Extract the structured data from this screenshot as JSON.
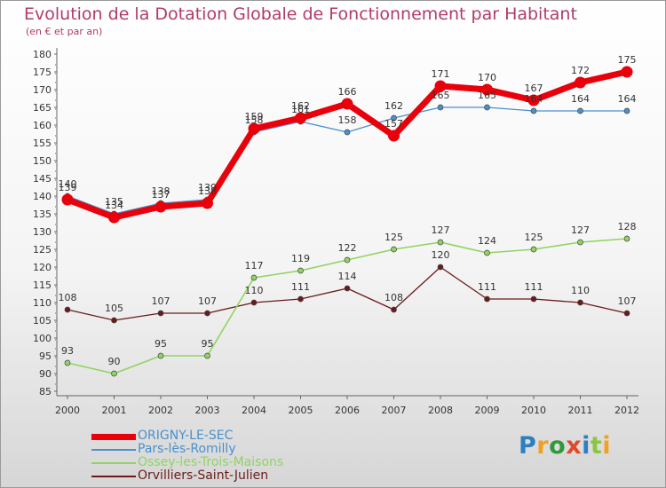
{
  "title": "Evolution de la Dotation Globale de Fonctionnement par Habitant",
  "subtitle": "(en € et par an)",
  "brand": {
    "text": "Proxiti",
    "letters": [
      {
        "ch": "P",
        "color": "#2e7fc0"
      },
      {
        "ch": "r",
        "color": "#f2a020"
      },
      {
        "ch": "o",
        "color": "#2e9a3a"
      },
      {
        "ch": "x",
        "color": "#e04a2a"
      },
      {
        "ch": "i",
        "color": "#2e7fc0"
      },
      {
        "ch": "t",
        "color": "#8cc63f"
      },
      {
        "ch": "i",
        "color": "#f2a020"
      }
    ]
  },
  "chart_data": {
    "type": "line",
    "title": "Evolution de la Dotation Globale de Fonctionnement par Habitant",
    "subtitle": "(en € et par an)",
    "xlabel": "",
    "ylabel": "",
    "categories": [
      "2000",
      "2001",
      "2002",
      "2003",
      "2004",
      "2005",
      "2006",
      "2007",
      "2008",
      "2009",
      "2010",
      "2011",
      "2012"
    ],
    "ylim": [
      85,
      180
    ],
    "ytick_step": 5,
    "grid": false,
    "legend_position": "bottom-left",
    "series": [
      {
        "name": "ORIGNY-LE-SEC",
        "color": "#e8000b",
        "values": [
          139,
          134,
          137,
          138,
          159,
          162,
          166,
          157,
          171,
          170,
          167,
          172,
          175
        ]
      },
      {
        "name": "Pars-lès-Romilly",
        "color": "#4a90cc",
        "values": [
          140,
          135,
          138,
          139,
          158,
          161,
          158,
          162,
          165,
          165,
          164,
          164,
          164
        ]
      },
      {
        "name": "Ossey-les-Trois-Maisons",
        "color": "#8fd460",
        "values": [
          93,
          90,
          95,
          95,
          117,
          119,
          122,
          125,
          127,
          124,
          125,
          127,
          128
        ]
      },
      {
        "name": "Orvilliers-Saint-Julien",
        "color": "#6b1a1a",
        "values": [
          108,
          105,
          107,
          107,
          110,
          111,
          114,
          108,
          120,
          111,
          111,
          110,
          107
        ]
      }
    ]
  }
}
